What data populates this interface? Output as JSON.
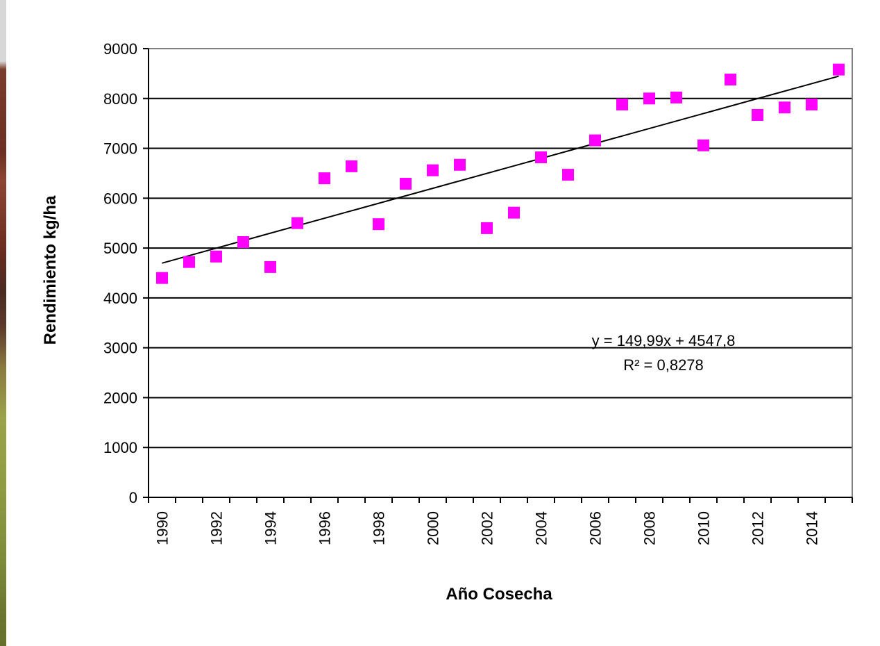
{
  "chart_data": {
    "type": "scatter",
    "title": "",
    "xlabel": "Año Cosecha",
    "ylabel": "Rendimiento kg/ha",
    "ylim": [
      0,
      9000
    ],
    "yticks": [
      0,
      1000,
      2000,
      3000,
      4000,
      5000,
      6000,
      7000,
      8000,
      9000
    ],
    "xticks": [
      "1990",
      "1992",
      "1994",
      "1996",
      "1998",
      "2000",
      "2002",
      "2004",
      "2006",
      "2008",
      "2010",
      "2012",
      "2014"
    ],
    "x": [
      1990,
      1991,
      1992,
      1993,
      1994,
      1995,
      1996,
      1997,
      1998,
      1999,
      2000,
      2001,
      2002,
      2003,
      2004,
      2005,
      2006,
      2007,
      2008,
      2009,
      2010,
      2011,
      2012,
      2013,
      2014,
      2015
    ],
    "series": [
      {
        "values": [
          4400,
          4720,
          4830,
          5120,
          4620,
          5500,
          6400,
          6640,
          5480,
          6290,
          6560,
          6670,
          5400,
          5710,
          6820,
          6470,
          7160,
          7880,
          8000,
          8020,
          7060,
          8380,
          7670,
          7820,
          7880,
          8580
        ],
        "marker": "square",
        "color": "#ff00ff"
      }
    ],
    "trendline": {
      "type": "linear",
      "slope": 149.99,
      "intercept": 4547.8,
      "color": "#000000"
    },
    "annotations": [
      "y = 149,99x + 4547,8",
      "R² = 0,8278"
    ],
    "grid": true,
    "legend": "none"
  }
}
